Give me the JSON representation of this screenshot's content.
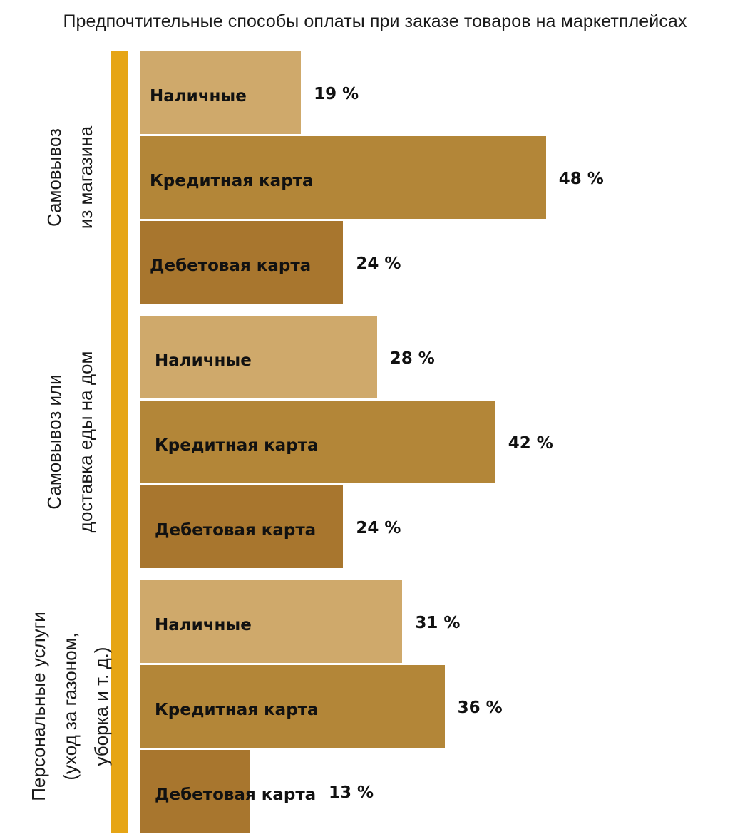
{
  "chart_data": {
    "type": "bar",
    "orientation": "horizontal",
    "title": "Предпочтительные способы оплаты при заказе товаров на маркетплейсах",
    "value_suffix": " %",
    "xlim": [
      0,
      60
    ],
    "grid": false,
    "colors": {
      "Наличные": "#cfa96b",
      "Кредитная карта": "#b38638",
      "Дебетовая карта": "#a8762e",
      "accent": "#e6a515"
    },
    "groups": [
      {
        "label_lines": [
          "Самовывоз",
          "из магазина"
        ],
        "bars": [
          {
            "category": "Наличные",
            "value": 19
          },
          {
            "category": "Кредитная карта",
            "value": 48
          },
          {
            "category": "Дебетовая карта",
            "value": 24
          }
        ]
      },
      {
        "label_lines": [
          "Самовывоз или",
          "доставка еды на дом"
        ],
        "bars": [
          {
            "category": "Наличные",
            "value": 28
          },
          {
            "category": "Кредитная карта",
            "value": 42
          },
          {
            "category": "Дебетовая карта",
            "value": 24
          }
        ]
      },
      {
        "label_lines": [
          "Персональные услуги",
          "(уход за газоном,",
          "уборка и т. д.)"
        ],
        "bars": [
          {
            "category": "Наличные",
            "value": 31
          },
          {
            "category": "Кредитная карта",
            "value": 36
          },
          {
            "category": "Дебетовая карта",
            "value": 13
          }
        ]
      }
    ]
  }
}
